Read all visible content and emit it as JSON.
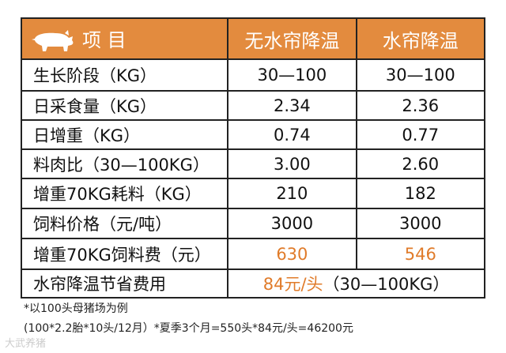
{
  "table": {
    "header": [
      "项 目",
      "无水帘降温",
      "水帘降温"
    ],
    "rows": [
      [
        "生长阶段（KG）",
        "30—100",
        "30—100"
      ],
      [
        "日采食量（KG）",
        "2.34",
        "2.36"
      ],
      [
        "日增重（KG）",
        "0.74",
        "0.77"
      ],
      [
        "料肉比（30—100KG）",
        "3.00",
        "2.60"
      ],
      [
        "增重70KG耗料（KG）",
        "210",
        "182"
      ],
      [
        "饲料价格（元/吨）",
        "3000",
        "3000"
      ],
      [
        "增重70KG饲料费（元）",
        "630",
        "546"
      ]
    ],
    "summary": {
      "label": "水帘降温节省费用",
      "value": "84元/头",
      "range": "（30—100KG）"
    }
  },
  "notes": [
    "*以100头母猪场为例",
    "(100*2.2胎*10头/12月）*夏季3个月=550头*84元/头=46200元"
  ],
  "watermark": "大武养猪"
}
